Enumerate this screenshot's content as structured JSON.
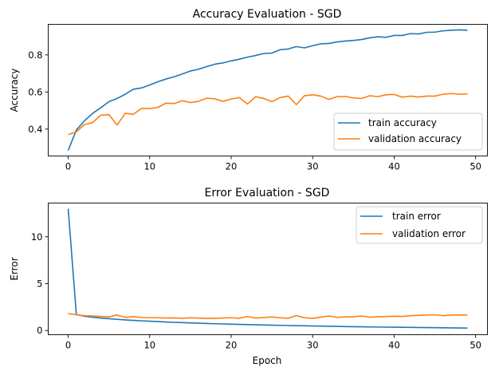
{
  "chart_data": [
    {
      "type": "line",
      "title": "Accuracy Evaluation - SGD",
      "xlabel": "",
      "ylabel": "Accuracy",
      "xlim": [
        -2.45,
        51.45
      ],
      "ylim": [
        0.255,
        0.965
      ],
      "xticks": [
        0,
        10,
        20,
        30,
        40,
        50
      ],
      "yticks": [
        0.4,
        0.6,
        0.8
      ],
      "ytick_labels": [
        "0.4",
        "0.6",
        "0.8"
      ],
      "grid": false,
      "legend_position": "lower-right",
      "series": [
        {
          "name": "train accuracy",
          "color": "#1f77b4",
          "x": [
            0,
            1,
            2,
            3,
            4,
            5,
            6,
            7,
            8,
            9,
            10,
            11,
            12,
            13,
            14,
            15,
            16,
            17,
            18,
            19,
            20,
            21,
            22,
            23,
            24,
            25,
            26,
            27,
            28,
            29,
            30,
            31,
            32,
            33,
            34,
            35,
            36,
            37,
            38,
            39,
            40,
            41,
            42,
            43,
            44,
            45,
            46,
            47,
            48,
            49
          ],
          "values": [
            0.285,
            0.395,
            0.445,
            0.485,
            0.515,
            0.548,
            0.565,
            0.588,
            0.615,
            0.622,
            0.638,
            0.655,
            0.67,
            0.682,
            0.697,
            0.713,
            0.723,
            0.737,
            0.75,
            0.757,
            0.768,
            0.777,
            0.788,
            0.797,
            0.808,
            0.81,
            0.828,
            0.832,
            0.845,
            0.838,
            0.85,
            0.86,
            0.862,
            0.87,
            0.875,
            0.878,
            0.883,
            0.892,
            0.898,
            0.895,
            0.905,
            0.905,
            0.915,
            0.913,
            0.922,
            0.923,
            0.93,
            0.933,
            0.935,
            0.933
          ]
        },
        {
          "name": "validation accuracy",
          "color": "#ff7f0e",
          "x": [
            0,
            1,
            2,
            3,
            4,
            5,
            6,
            7,
            8,
            9,
            10,
            11,
            12,
            13,
            14,
            15,
            16,
            17,
            18,
            19,
            20,
            21,
            22,
            23,
            24,
            25,
            26,
            27,
            28,
            29,
            30,
            31,
            32,
            33,
            34,
            35,
            36,
            37,
            38,
            39,
            40,
            41,
            42,
            43,
            44,
            45,
            46,
            47,
            48,
            49
          ],
          "values": [
            0.37,
            0.385,
            0.425,
            0.435,
            0.475,
            0.478,
            0.422,
            0.485,
            0.48,
            0.512,
            0.51,
            0.517,
            0.54,
            0.538,
            0.553,
            0.543,
            0.55,
            0.567,
            0.563,
            0.55,
            0.562,
            0.57,
            0.535,
            0.575,
            0.565,
            0.548,
            0.57,
            0.578,
            0.532,
            0.58,
            0.585,
            0.578,
            0.56,
            0.575,
            0.576,
            0.568,
            0.565,
            0.58,
            0.575,
            0.585,
            0.587,
            0.572,
            0.578,
            0.573,
            0.578,
            0.578,
            0.588,
            0.592,
            0.588,
            0.59
          ]
        }
      ]
    },
    {
      "type": "line",
      "title": "Error Evaluation - SGD",
      "xlabel": "Epoch",
      "ylabel": "Error",
      "xlim": [
        -2.45,
        51.45
      ],
      "ylim": [
        -0.45,
        13.6
      ],
      "xticks": [
        0,
        10,
        20,
        30,
        40,
        50
      ],
      "yticks": [
        0,
        5,
        10
      ],
      "ytick_labels": [
        "0",
        "5",
        "10"
      ],
      "grid": false,
      "legend_position": "top-right",
      "series": [
        {
          "name": "train error",
          "color": "#1f77b4",
          "x": [
            0,
            1,
            2,
            3,
            4,
            5,
            6,
            7,
            8,
            9,
            10,
            11,
            12,
            13,
            14,
            15,
            16,
            17,
            18,
            19,
            20,
            21,
            22,
            23,
            24,
            25,
            26,
            27,
            28,
            29,
            30,
            31,
            32,
            33,
            34,
            35,
            36,
            37,
            38,
            39,
            40,
            41,
            42,
            43,
            44,
            45,
            46,
            47,
            48,
            49
          ],
          "values": [
            13.0,
            1.7,
            1.52,
            1.42,
            1.33,
            1.26,
            1.19,
            1.13,
            1.08,
            1.03,
            0.99,
            0.95,
            0.91,
            0.87,
            0.84,
            0.81,
            0.78,
            0.75,
            0.72,
            0.7,
            0.67,
            0.65,
            0.63,
            0.61,
            0.59,
            0.57,
            0.55,
            0.53,
            0.51,
            0.5,
            0.48,
            0.47,
            0.45,
            0.44,
            0.42,
            0.41,
            0.4,
            0.38,
            0.37,
            0.36,
            0.35,
            0.34,
            0.33,
            0.32,
            0.31,
            0.3,
            0.29,
            0.28,
            0.27,
            0.26
          ]
        },
        {
          "name": "validation error",
          "color": "#ff7f0e",
          "x": [
            0,
            1,
            2,
            3,
            4,
            5,
            6,
            7,
            8,
            9,
            10,
            11,
            12,
            13,
            14,
            15,
            16,
            17,
            18,
            19,
            20,
            21,
            22,
            23,
            24,
            25,
            26,
            27,
            28,
            29,
            30,
            31,
            32,
            33,
            34,
            35,
            36,
            37,
            38,
            39,
            40,
            41,
            42,
            43,
            44,
            45,
            46,
            47,
            48,
            49
          ],
          "values": [
            1.8,
            1.68,
            1.58,
            1.55,
            1.5,
            1.45,
            1.65,
            1.4,
            1.48,
            1.38,
            1.37,
            1.36,
            1.33,
            1.34,
            1.3,
            1.35,
            1.32,
            1.28,
            1.3,
            1.33,
            1.36,
            1.3,
            1.5,
            1.32,
            1.38,
            1.45,
            1.35,
            1.3,
            1.6,
            1.35,
            1.3,
            1.42,
            1.55,
            1.4,
            1.45,
            1.46,
            1.55,
            1.42,
            1.46,
            1.48,
            1.52,
            1.5,
            1.58,
            1.62,
            1.65,
            1.68,
            1.58,
            1.65,
            1.66,
            1.64
          ]
        }
      ]
    }
  ]
}
